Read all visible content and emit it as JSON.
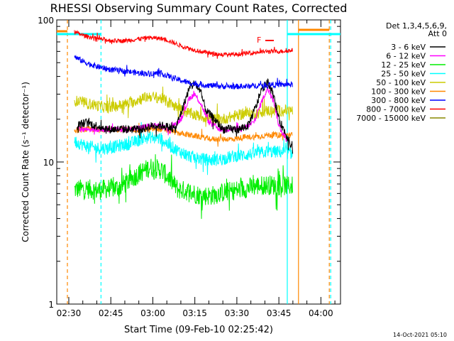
{
  "chart_data": {
    "type": "line",
    "title": "RHESSI Observing Summary Count Rates, Corrected",
    "xlabel": "Start Time (09-Feb-10 02:25:42)",
    "ylabel": "Corrected Count Rate (s⁻¹ detector⁻¹)",
    "ylog": true,
    "ylim": [
      1,
      100
    ],
    "xlim": [
      "02:25:42",
      "04:07:00"
    ],
    "x_ticks": [
      "02:30",
      "02:45",
      "03:00",
      "03:15",
      "03:30",
      "03:45",
      "04:00"
    ],
    "y_ticks": [
      "1",
      "10",
      "100"
    ],
    "legend_title_1": "Det 1,3,4,5,6,9,",
    "legend_title_2": "Att 0",
    "legend_position": "right",
    "timestamp": "14-Oct-2021 05:10",
    "flag_label": "F",
    "series": [
      {
        "name": "3 - 6 keV",
        "color": "#000000",
        "points": [
          [
            "02:33",
            18
          ],
          [
            "02:36",
            19
          ],
          [
            "02:40",
            18
          ],
          [
            "02:44",
            17
          ],
          [
            "02:48",
            17
          ],
          [
            "02:52",
            17
          ],
          [
            "02:56",
            17
          ],
          [
            "03:00",
            18
          ],
          [
            "03:04",
            18
          ],
          [
            "03:08",
            17
          ],
          [
            "03:10",
            22
          ],
          [
            "03:13",
            33
          ],
          [
            "03:15",
            36
          ],
          [
            "03:17",
            31
          ],
          [
            "03:19",
            23
          ],
          [
            "03:22",
            20
          ],
          [
            "03:25",
            17
          ],
          [
            "03:28",
            17
          ],
          [
            "03:31",
            17
          ],
          [
            "03:34",
            18
          ],
          [
            "03:37",
            25
          ],
          [
            "03:39",
            33
          ],
          [
            "03:41",
            36
          ],
          [
            "03:43",
            30
          ],
          [
            "03:45",
            20
          ],
          [
            "03:48",
            15
          ],
          [
            "03:50",
            12
          ]
        ]
      },
      {
        "name": "6 - 12 keV",
        "color": "#ff00ff",
        "points": [
          [
            "02:33",
            17
          ],
          [
            "02:38",
            17
          ],
          [
            "02:43",
            17
          ],
          [
            "02:48",
            17
          ],
          [
            "02:53",
            17
          ],
          [
            "02:58",
            18
          ],
          [
            "03:02",
            18
          ],
          [
            "03:06",
            17
          ],
          [
            "03:10",
            20
          ],
          [
            "03:13",
            28
          ],
          [
            "03:15",
            30
          ],
          [
            "03:17",
            26
          ],
          [
            "03:20",
            19
          ],
          [
            "03:24",
            17
          ],
          [
            "03:28",
            17
          ],
          [
            "03:32",
            17
          ],
          [
            "03:36",
            19
          ],
          [
            "03:39",
            27
          ],
          [
            "03:41",
            33
          ],
          [
            "03:43",
            28
          ],
          [
            "03:45",
            18
          ],
          [
            "03:48",
            14
          ]
        ]
      },
      {
        "name": "12 - 25 keV",
        "color": "#00ee00",
        "points": [
          [
            "02:32",
            6.4
          ],
          [
            "02:36",
            6.5
          ],
          [
            "02:40",
            6.3
          ],
          [
            "02:44",
            6.5
          ],
          [
            "02:48",
            6.6
          ],
          [
            "02:52",
            7.5
          ],
          [
            "02:56",
            8.5
          ],
          [
            "02:59",
            9.2
          ],
          [
            "03:03",
            8.8
          ],
          [
            "03:06",
            7.6
          ],
          [
            "03:09",
            6.4
          ],
          [
            "03:13",
            6.2
          ],
          [
            "03:17",
            5.8
          ],
          [
            "03:21",
            5.8
          ],
          [
            "03:25",
            6.1
          ],
          [
            "03:29",
            6.3
          ],
          [
            "03:33",
            6.5
          ],
          [
            "03:37",
            6.8
          ],
          [
            "03:41",
            6.9
          ],
          [
            "03:45",
            6.8
          ],
          [
            "03:50",
            6.8
          ]
        ]
      },
      {
        "name": "25 - 50 keV",
        "color": "#00ffff",
        "points": [
          [
            "02:32",
            14
          ],
          [
            "02:36",
            13
          ],
          [
            "02:40",
            12.5
          ],
          [
            "02:44",
            12.5
          ],
          [
            "02:48",
            13
          ],
          [
            "02:52",
            13.5
          ],
          [
            "02:56",
            14.5
          ],
          [
            "02:59",
            15
          ],
          [
            "03:03",
            14.5
          ],
          [
            "03:06",
            13
          ],
          [
            "03:09",
            12
          ],
          [
            "03:13",
            11
          ],
          [
            "03:17",
            10.5
          ],
          [
            "03:21",
            10.3
          ],
          [
            "03:25",
            10.5
          ],
          [
            "03:29",
            11
          ],
          [
            "03:33",
            11.2
          ],
          [
            "03:37",
            11.5
          ],
          [
            "03:41",
            11.8
          ],
          [
            "03:45",
            11.8
          ],
          [
            "03:50",
            11.5
          ]
        ]
      },
      {
        "name": "50 - 100 keV",
        "color": "#cccc00",
        "points": [
          [
            "02:32",
            27
          ],
          [
            "02:36",
            26
          ],
          [
            "02:40",
            25
          ],
          [
            "02:44",
            24
          ],
          [
            "02:48",
            25
          ],
          [
            "02:52",
            26
          ],
          [
            "02:56",
            28
          ],
          [
            "02:59",
            29
          ],
          [
            "03:03",
            28
          ],
          [
            "03:06",
            26
          ],
          [
            "03:09",
            24
          ],
          [
            "03:13",
            22
          ],
          [
            "03:17",
            21
          ],
          [
            "03:21",
            20
          ],
          [
            "03:25",
            20
          ],
          [
            "03:29",
            21
          ],
          [
            "03:33",
            22
          ],
          [
            "03:37",
            22
          ],
          [
            "03:41",
            23
          ],
          [
            "03:45",
            23
          ],
          [
            "03:50",
            23
          ]
        ]
      },
      {
        "name": "100 - 300 keV",
        "color": "#ff8800",
        "points": [
          [
            "02:32",
            16.5
          ],
          [
            "02:36",
            17
          ],
          [
            "02:40",
            17
          ],
          [
            "02:44",
            17
          ],
          [
            "02:48",
            17
          ],
          [
            "02:52",
            17
          ],
          [
            "02:56",
            17
          ],
          [
            "02:59",
            17
          ],
          [
            "03:03",
            17
          ],
          [
            "03:06",
            16.5
          ],
          [
            "03:09",
            16
          ],
          [
            "03:13",
            15.5
          ],
          [
            "03:17",
            15
          ],
          [
            "03:21",
            14.5
          ],
          [
            "03:25",
            14.5
          ],
          [
            "03:29",
            14.5
          ],
          [
            "03:33",
            15
          ],
          [
            "03:37",
            15
          ],
          [
            "03:41",
            15.5
          ],
          [
            "03:45",
            15.5
          ],
          [
            "03:50",
            15.5
          ]
        ]
      },
      {
        "name": "300 - 800 keV",
        "color": "#0000ff",
        "points": [
          [
            "02:32",
            55
          ],
          [
            "02:36",
            50
          ],
          [
            "02:40",
            47
          ],
          [
            "02:44",
            45
          ],
          [
            "02:48",
            44
          ],
          [
            "02:52",
            43
          ],
          [
            "02:56",
            42
          ],
          [
            "02:59",
            42
          ],
          [
            "03:03",
            42
          ],
          [
            "03:06",
            40
          ],
          [
            "03:09",
            38
          ],
          [
            "03:13",
            36
          ],
          [
            "03:17",
            35
          ],
          [
            "03:21",
            34.5
          ],
          [
            "03:25",
            34
          ],
          [
            "03:29",
            34
          ],
          [
            "03:33",
            34
          ],
          [
            "03:37",
            34.5
          ],
          [
            "03:41",
            35
          ],
          [
            "03:45",
            35
          ],
          [
            "03:50",
            35
          ]
        ]
      },
      {
        "name": "800 - 7000 keV",
        "color": "#ff0000",
        "points": [
          [
            "02:32",
            82
          ],
          [
            "02:36",
            77
          ],
          [
            "02:40",
            74
          ],
          [
            "02:44",
            72
          ],
          [
            "02:48",
            71
          ],
          [
            "02:52",
            72
          ],
          [
            "02:56",
            74
          ],
          [
            "02:59",
            75
          ],
          [
            "03:03",
            74
          ],
          [
            "03:06",
            71
          ],
          [
            "03:09",
            67
          ],
          [
            "03:13",
            63
          ],
          [
            "03:17",
            60
          ],
          [
            "03:21",
            58
          ],
          [
            "03:25",
            57
          ],
          [
            "03:29",
            57
          ],
          [
            "03:33",
            58
          ],
          [
            "03:37",
            59
          ],
          [
            "03:41",
            60
          ],
          [
            "03:45",
            60
          ],
          [
            "03:50",
            61
          ]
        ]
      },
      {
        "name": "7000 - 15000 keV",
        "color": "#888800",
        "points": []
      }
    ]
  }
}
